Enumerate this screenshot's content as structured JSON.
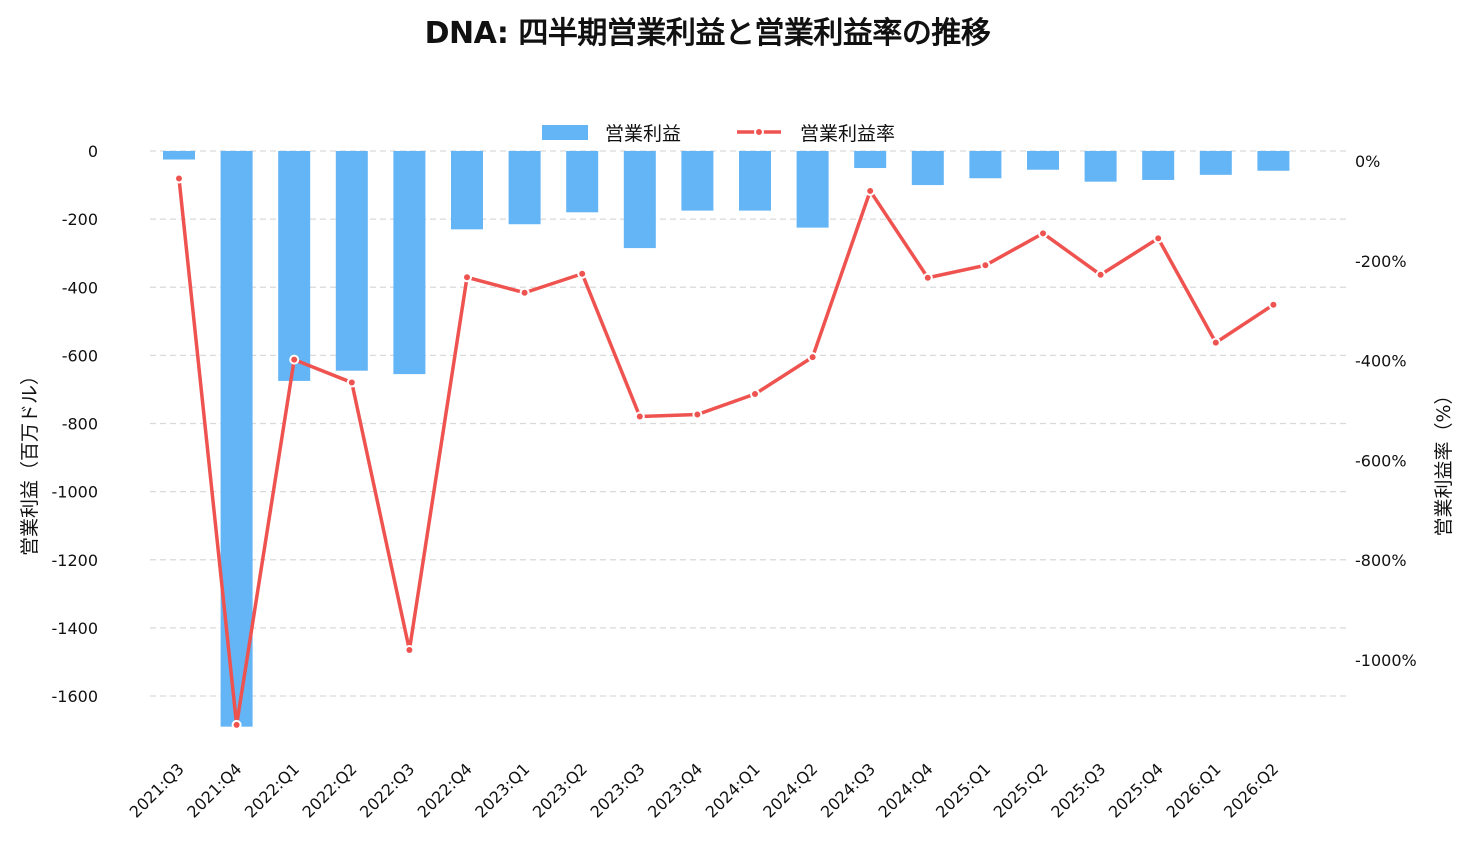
{
  "colors": {
    "bar": "#64b5f6",
    "line": "#ef5350",
    "grid": "#d9d9d9",
    "text": "#111111"
  },
  "chart_data": {
    "type": "bar",
    "title": "DNA: 四半期営業利益と営業利益率の推移",
    "categories": [
      "2021:Q3",
      "2021:Q4",
      "2022:Q1",
      "2022:Q2",
      "2022:Q3",
      "2022:Q4",
      "2023:Q1",
      "2023:Q2",
      "2023:Q3",
      "2023:Q4",
      "2024:Q1",
      "2024:Q2",
      "2024:Q3",
      "2024:Q4",
      "2025:Q1",
      "2025:Q2",
      "2025:Q3",
      "2025:Q4",
      "2026:Q1",
      "2026:Q2"
    ],
    "series": [
      {
        "name": "営業利益",
        "type": "bar",
        "axis": "left",
        "values": [
          -25,
          -1690,
          -675,
          -645,
          -655,
          -230,
          -215,
          -180,
          -285,
          -175,
          -175,
          -225,
          -50,
          -100,
          -80,
          -55,
          -90,
          -85,
          -70,
          -58
        ]
      },
      {
        "name": "営業利益率",
        "type": "line",
        "axis": "right",
        "values": [
          -35,
          -1130,
          -398,
          -444,
          -980,
          -233,
          -264,
          -226,
          -512,
          -508,
          -467,
          -393,
          -60,
          -234,
          -209,
          -145,
          -228,
          -155,
          -364,
          -288
        ]
      }
    ],
    "ylabel": "営業利益（百万ドル）",
    "y2label": "営業利益率（%）",
    "ylim": [
      -1750,
      0
    ],
    "y2lim": [
      -1130,
      21
    ],
    "yticks": [
      0,
      -200,
      -400,
      -600,
      -800,
      -1000,
      -1200,
      -1400,
      -1600
    ],
    "ytick_labels": [
      "0",
      "-200",
      "-400",
      "-600",
      "-800",
      "-1000",
      "-1200",
      "-1400",
      "-1600"
    ],
    "y2ticks": [
      0,
      -200,
      -400,
      -600,
      -800,
      -1000
    ],
    "y2tick_labels": [
      "0%",
      "-200%",
      "-400%",
      "-600%",
      "-800%",
      "-1000%"
    ],
    "grid": true,
    "legend_position": "top-center"
  }
}
